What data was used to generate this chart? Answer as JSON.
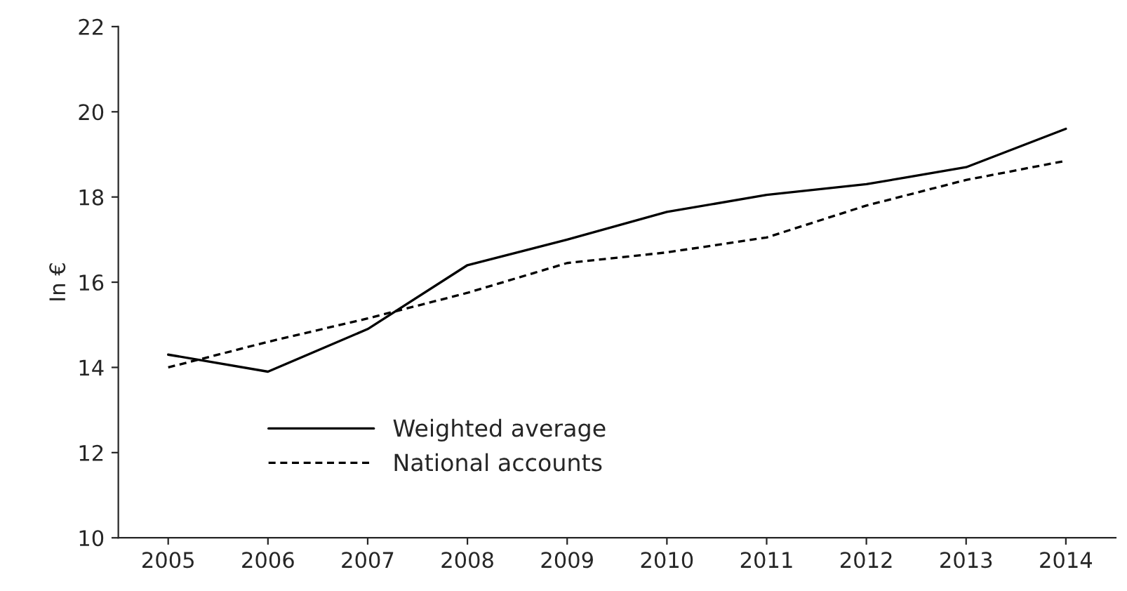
{
  "chart_data": {
    "type": "line",
    "ylabel": "In €",
    "categories": [
      "2005",
      "2006",
      "2007",
      "2008",
      "2009",
      "2010",
      "2011",
      "2012",
      "2013",
      "2014"
    ],
    "series": [
      {
        "name": "Weighted average",
        "color": "#000000",
        "line_style": "solid",
        "values": [
          14.3,
          13.9,
          14.9,
          16.4,
          17.0,
          17.65,
          18.05,
          18.3,
          18.7,
          19.6
        ]
      },
      {
        "name": "National accounts",
        "color": "#000000",
        "line_style": "dashed",
        "values": [
          14.0,
          14.6,
          15.15,
          15.75,
          16.45,
          16.7,
          17.05,
          17.8,
          18.4,
          18.85
        ]
      }
    ],
    "ylim": [
      10,
      22
    ],
    "yticks": [
      10,
      12,
      14,
      16,
      18,
      20,
      22
    ],
    "grid": false,
    "legend": "bottom",
    "marker": "none"
  }
}
